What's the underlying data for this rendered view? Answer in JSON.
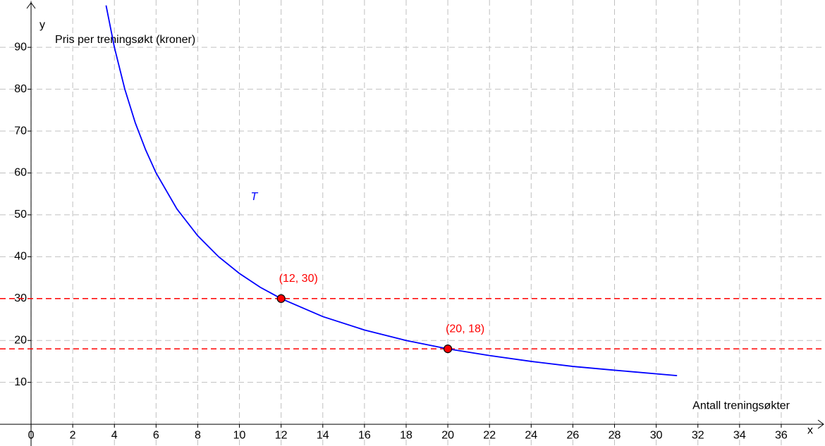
{
  "chart_data": {
    "type": "line",
    "x_label": "x",
    "y_label": "y",
    "x_axis_title": "Antall treningsøkter",
    "y_axis_title": "Pris per treningsøkt (kroner)",
    "xlim": [
      -1.49,
      38.1
    ],
    "ylim": [
      -5.2,
      101.3
    ],
    "xticks": [
      0,
      2,
      4,
      6,
      8,
      10,
      12,
      14,
      16,
      18,
      20,
      22,
      24,
      26,
      28,
      30,
      32,
      34,
      36
    ],
    "yticks": [
      10,
      20,
      30,
      40,
      50,
      60,
      70,
      80,
      90
    ],
    "grid": true,
    "series": [
      {
        "name": "T",
        "color": "#0000ff",
        "x": [
          3.6,
          4,
          4.5,
          5,
          5.5,
          6,
          7,
          8,
          9,
          10,
          11,
          12,
          14,
          16,
          18,
          20,
          22,
          24,
          26,
          28,
          31
        ],
        "values": [
          100,
          90,
          80,
          72,
          65.5,
          60,
          51.4,
          45,
          40,
          36,
          32.7,
          30,
          25.7,
          22.5,
          20,
          18,
          16.4,
          15,
          13.8,
          12.9,
          11.6
        ]
      }
    ],
    "points": [
      {
        "x": 12,
        "y": 30,
        "label": "(12, 30)"
      },
      {
        "x": 20,
        "y": 18,
        "label": "(20, 18)"
      }
    ],
    "point_color": "#ff0000",
    "hlines": [
      30,
      18
    ],
    "hline_color": "#ff0000"
  }
}
